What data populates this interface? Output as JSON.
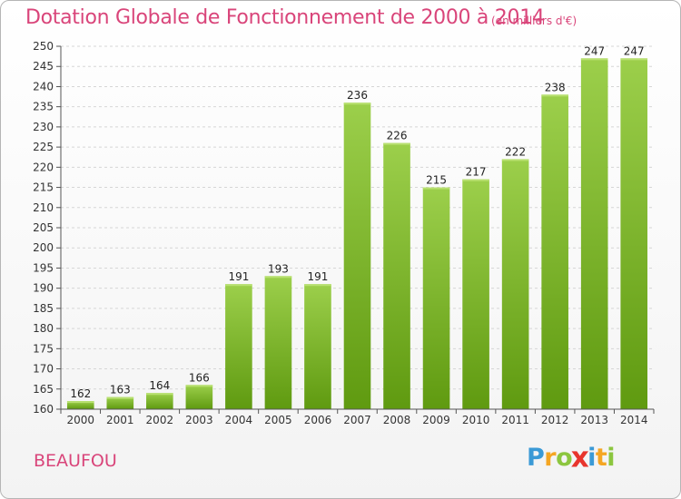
{
  "header": {
    "title": "Dotation Globale de Fonctionnement de 2000 à 2014",
    "subtitle": "(en milliers d'€)"
  },
  "footer": {
    "commune": "BEAUFOU",
    "logo_letters": [
      "P",
      "r",
      "o",
      "x",
      "i",
      "t",
      "i"
    ],
    "logo_colors": [
      "#3b9ad6",
      "#f5a623",
      "#8cc63f",
      "#e8352d",
      "#3b9ad6",
      "#f5a623",
      "#8cc63f"
    ]
  },
  "colors": {
    "bar_top": "#9ccf4b",
    "bar_bottom": "#5f9a10",
    "title": "#d9457a"
  },
  "chart_data": {
    "type": "bar",
    "title": "Dotation Globale de Fonctionnement de 2000 à 2014",
    "subtitle": "(en milliers d'€)",
    "categories": [
      "2000",
      "2001",
      "2002",
      "2003",
      "2004",
      "2005",
      "2006",
      "2007",
      "2008",
      "2009",
      "2010",
      "2011",
      "2012",
      "2013",
      "2014"
    ],
    "values": [
      162,
      163,
      164,
      166,
      191,
      193,
      191,
      236,
      226,
      215,
      217,
      222,
      238,
      247,
      247
    ],
    "ylim": [
      160,
      250
    ],
    "yticks": [
      160,
      165,
      170,
      175,
      180,
      185,
      190,
      195,
      200,
      205,
      210,
      215,
      220,
      225,
      230,
      235,
      240,
      245,
      250
    ],
    "grid": true,
    "xlabel": "",
    "ylabel": ""
  }
}
